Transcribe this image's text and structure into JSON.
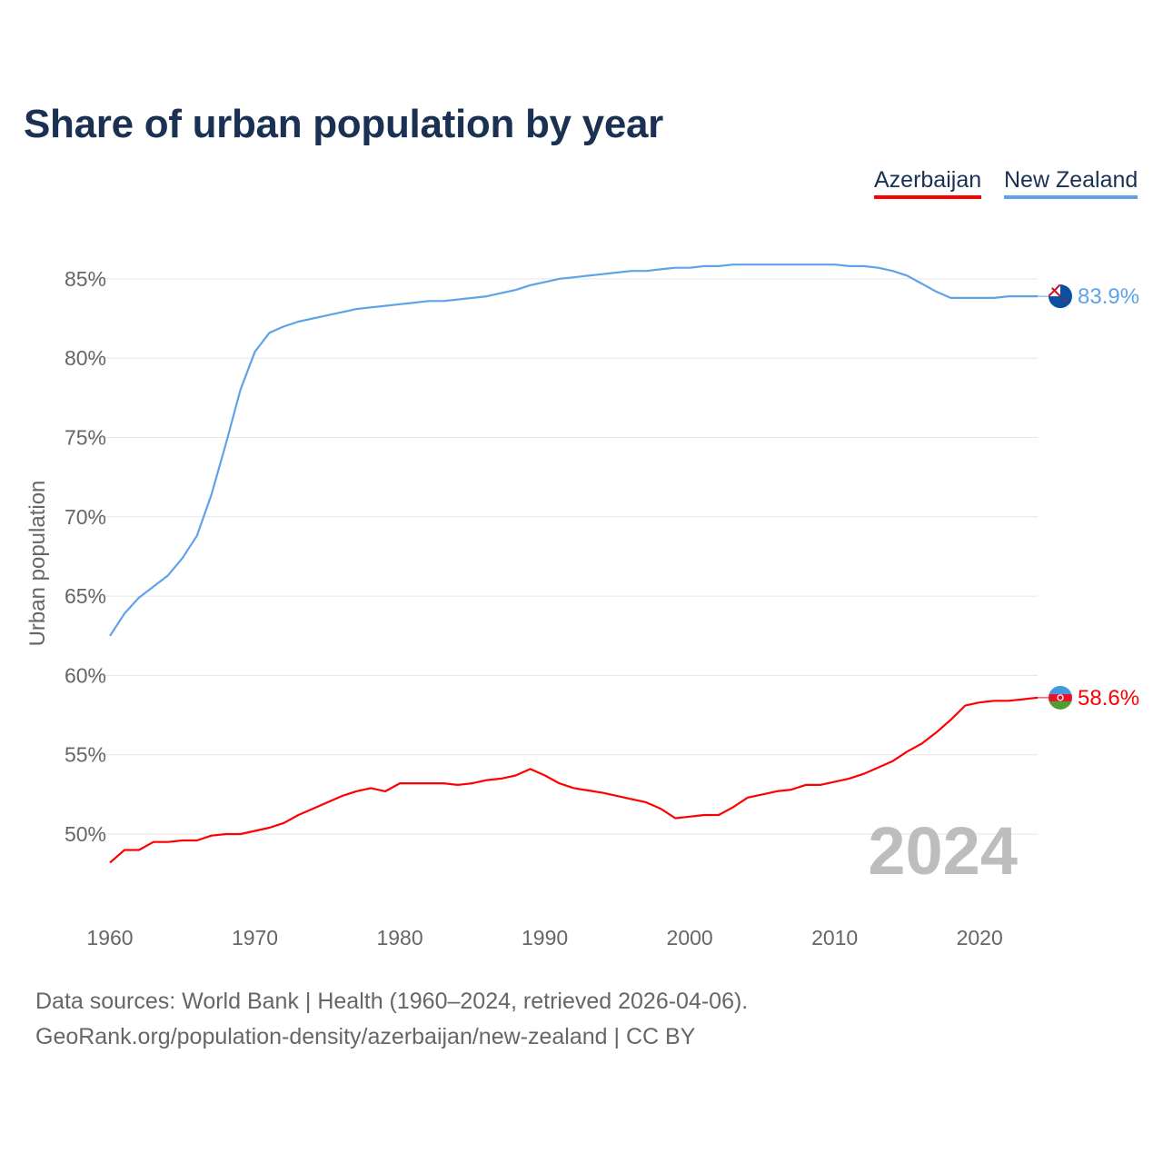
{
  "title": "Share of urban population by year",
  "legend": [
    {
      "label": "Azerbaijan",
      "color": "#ff0000"
    },
    {
      "label": "New Zealand",
      "color": "#5ea3e8"
    }
  ],
  "year_watermark": "2024",
  "footer": {
    "line1": "Data sources: World Bank | Health (1960–2024, retrieved 2026-04-06).",
    "line2": "GeoRank.org/population-density/azerbaijan/new-zealand | CC BY"
  },
  "chart_data": {
    "type": "line",
    "title": "Share of urban population by year",
    "xlabel": "",
    "ylabel": "Urban population",
    "xlim": [
      1960,
      2024
    ],
    "ylim": [
      45.3,
      88
    ],
    "grid": true,
    "legend_placement": "top-right",
    "x_ticks": [
      1960,
      1970,
      1980,
      1990,
      2000,
      2010,
      2020
    ],
    "x_tick_labels": [
      "1960",
      "1970",
      "1980",
      "1990",
      "2000",
      "2010",
      "2020"
    ],
    "y_ticks": [
      50,
      55,
      60,
      65,
      70,
      75,
      80,
      85
    ],
    "y_tick_labels": [
      "50%",
      "55%",
      "60%",
      "65%",
      "70%",
      "75%",
      "80%",
      "85%"
    ],
    "x_start": 1960,
    "series": [
      {
        "name": "Azerbaijan",
        "color": "#ff0000",
        "end_label": "58.6%",
        "values": [
          48.2,
          49.0,
          49.0,
          49.5,
          49.5,
          49.6,
          49.6,
          49.9,
          50.0,
          50.0,
          50.2,
          50.4,
          50.7,
          51.2,
          51.6,
          52.0,
          52.4,
          52.7,
          52.9,
          52.7,
          53.2,
          53.2,
          53.2,
          53.2,
          53.1,
          53.2,
          53.4,
          53.5,
          53.7,
          54.1,
          53.7,
          53.2,
          52.9,
          52.75,
          52.6,
          52.4,
          52.2,
          52.0,
          51.6,
          51.0,
          51.1,
          51.2,
          51.2,
          51.7,
          52.3,
          52.5,
          52.7,
          52.8,
          53.1,
          53.1,
          53.3,
          53.5,
          53.8,
          54.2,
          54.6,
          55.2,
          55.7,
          56.4,
          57.2,
          58.1,
          58.3,
          58.4,
          58.4,
          58.5,
          58.6
        ]
      },
      {
        "name": "New Zealand",
        "color": "#5ea3e8",
        "end_label": "83.9%",
        "values": [
          62.5,
          63.9,
          64.9,
          65.6,
          66.3,
          67.4,
          68.8,
          71.4,
          74.6,
          78.0,
          80.4,
          81.6,
          82.0,
          82.3,
          82.5,
          82.7,
          82.9,
          83.1,
          83.2,
          83.3,
          83.4,
          83.5,
          83.6,
          83.6,
          83.7,
          83.8,
          83.9,
          84.1,
          84.3,
          84.6,
          84.8,
          85.0,
          85.1,
          85.2,
          85.3,
          85.4,
          85.5,
          85.5,
          85.6,
          85.7,
          85.7,
          85.8,
          85.8,
          85.9,
          85.9,
          85.9,
          85.9,
          85.9,
          85.9,
          85.9,
          85.9,
          85.8,
          85.8,
          85.7,
          85.5,
          85.2,
          84.7,
          84.2,
          83.8,
          83.8,
          83.8,
          83.8,
          83.9,
          83.9,
          83.9
        ]
      }
    ]
  }
}
